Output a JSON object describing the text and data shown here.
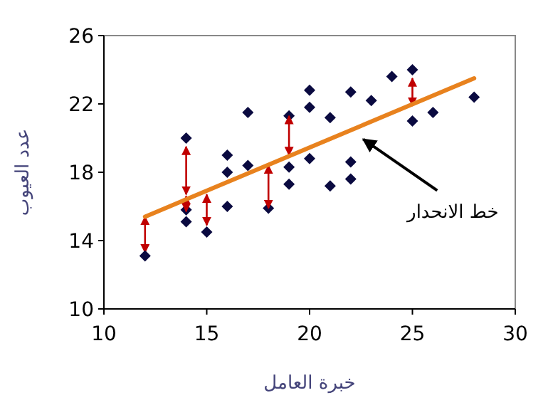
{
  "chart_data": {
    "type": "scatter",
    "xlabel": "خبرة العامل",
    "ylabel": "عدد العيوب",
    "xlim": [
      10,
      30
    ],
    "xticks": [
      10,
      15,
      20,
      25,
      30
    ],
    "ylim": [
      10,
      26
    ],
    "yticks": [
      10,
      14,
      18,
      22,
      26
    ],
    "grid": false,
    "annotations": [
      {
        "text": "خط الانحدار",
        "x": 22.4,
        "y": 20.1
      }
    ],
    "series": [
      {
        "marker": "diamond",
        "color": "#0a0a40",
        "x": [
          12,
          14,
          14,
          14,
          15,
          16,
          16,
          16,
          17,
          17,
          18,
          19,
          19,
          19,
          20,
          20,
          20,
          21,
          21,
          22,
          22,
          22,
          23,
          24,
          25,
          25,
          26,
          28
        ],
        "values": [
          13.1,
          20.0,
          15.8,
          15.1,
          14.5,
          19.0,
          18.0,
          16.0,
          21.5,
          18.4,
          15.9,
          21.3,
          18.3,
          17.3,
          22.8,
          21.8,
          18.8,
          21.2,
          17.2,
          22.7,
          18.6,
          17.6,
          22.2,
          23.6,
          24.0,
          21.0,
          21.5,
          22.4
        ],
        "errors": [
          [
            13.3,
            15.4
          ],
          [
            16.7,
            19.5
          ],
          [
            15.7,
            16.6
          ],
          null,
          [
            14.9,
            16.7
          ],
          null,
          null,
          null,
          null,
          null,
          [
            15.9,
            18.4
          ],
          [
            19.0,
            21.3
          ],
          null,
          null,
          null,
          null,
          null,
          null,
          null,
          null,
          null,
          null,
          null,
          null,
          [
            21.9,
            23.5
          ],
          null,
          null,
          null
        ]
      },
      {
        "type": "line",
        "marker": "none",
        "color": "#e8821e",
        "x": [
          12,
          28
        ],
        "values": [
          15.4,
          23.5
        ]
      }
    ]
  }
}
